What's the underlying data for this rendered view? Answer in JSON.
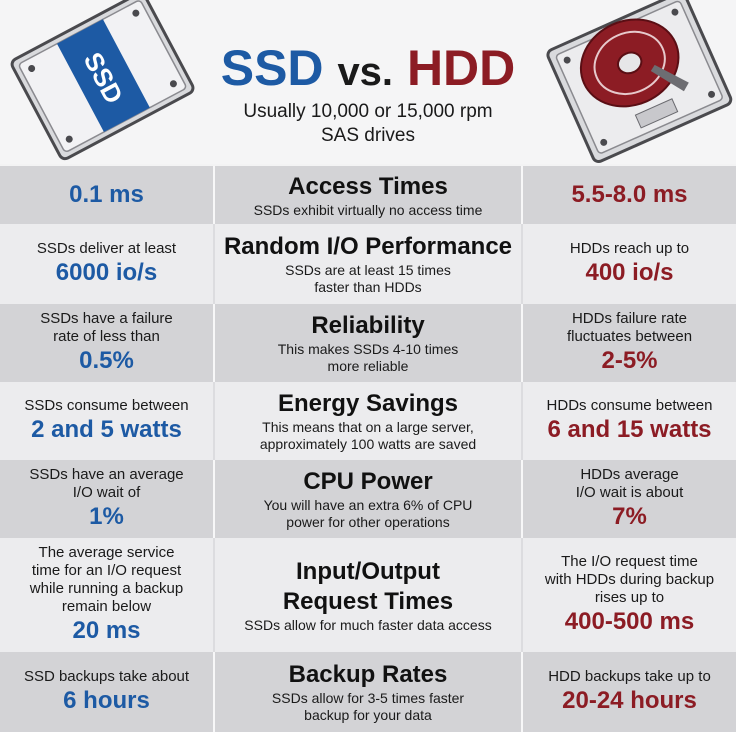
{
  "header": {
    "title_ssd": "SSD",
    "title_vs": "vs.",
    "title_hdd": "HDD",
    "subtitle_line1": "Usually 10,000 or 15,000 rpm",
    "subtitle_line2": "SAS drives",
    "ssd_label": "SSD"
  },
  "colors": {
    "ssd_blue": "#1d5aa4",
    "hdd_red": "#8c1c24"
  },
  "rows": [
    {
      "category": [
        "Access Times"
      ],
      "description": [
        "SSDs exhibit virtually no access time"
      ],
      "ssd_note": [],
      "ssd_value": "0.1 ms",
      "hdd_note": [],
      "hdd_value": "5.5-8.0 ms"
    },
    {
      "category": [
        "Random I/O Performance"
      ],
      "description": [
        "SSDs are at least 15 times",
        "faster than HDDs"
      ],
      "ssd_note": [
        "SSDs deliver at least"
      ],
      "ssd_value": "6000 io/s",
      "hdd_note": [
        "HDDs reach up to"
      ],
      "hdd_value": "400 io/s"
    },
    {
      "category": [
        "Reliability"
      ],
      "description": [
        "This makes SSDs 4-10 times",
        "more reliable"
      ],
      "ssd_note": [
        "SSDs have a failure",
        "rate of less than"
      ],
      "ssd_value": "0.5%",
      "hdd_note": [
        "HDDs failure rate",
        "fluctuates between"
      ],
      "hdd_value": "2-5%"
    },
    {
      "category": [
        "Energy Savings"
      ],
      "description": [
        "This means that on a large server,",
        "approximately 100 watts are saved"
      ],
      "ssd_note": [
        "SSDs consume between"
      ],
      "ssd_value": "2 and 5 watts",
      "hdd_note": [
        "HDDs consume between"
      ],
      "hdd_value": "6 and 15 watts"
    },
    {
      "category": [
        "CPU Power"
      ],
      "description": [
        "You will have an extra 6% of CPU",
        "power for other operations"
      ],
      "ssd_note": [
        "SSDs have an average",
        "I/O wait of"
      ],
      "ssd_value": "1%",
      "hdd_note": [
        "HDDs average",
        "I/O wait is about"
      ],
      "hdd_value": "7%"
    },
    {
      "category": [
        "Input/Output",
        "Request Times"
      ],
      "description": [
        "SSDs allow for much faster data access"
      ],
      "ssd_note": [
        "The average service",
        "time for an I/O request",
        "while running a backup",
        "remain below"
      ],
      "ssd_value": "20 ms",
      "hdd_note": [
        "The I/O request time",
        "with HDDs during backup",
        "rises up to"
      ],
      "hdd_value": "400-500 ms"
    },
    {
      "category": [
        "Backup Rates"
      ],
      "description": [
        "SSDs allow for 3-5 times faster",
        "backup for your data"
      ],
      "ssd_note": [
        "SSD backups take about"
      ],
      "ssd_value": "6 hours",
      "hdd_note": [
        "HDD backups take up to"
      ],
      "hdd_value": "20-24 hours"
    }
  ]
}
